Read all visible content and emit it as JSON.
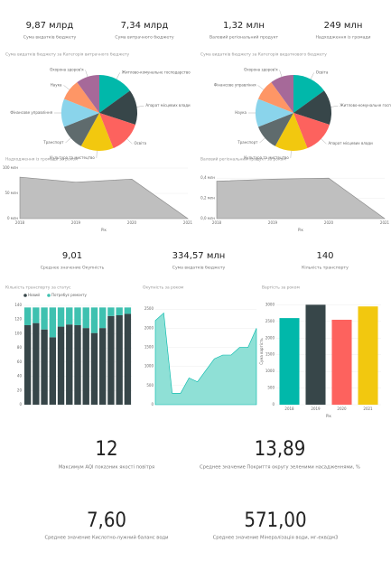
{
  "cards": [
    {
      "value": "9,87 млрд",
      "label": "Сума видатків бюджету"
    },
    {
      "value": "7,34 млрд",
      "label": "Сума витрачного бюджету"
    },
    {
      "value": "1,32 млн",
      "label": "Валовий регіональний продукт"
    },
    {
      "value": "249 млн",
      "label": "Надходження із громади"
    },
    {
      "value": "9,01",
      "label": "Среднее значение Окупність"
    },
    {
      "value": "334,57 млн",
      "label": "Сума видатків бюджету"
    },
    {
      "value": "140",
      "label": "Кількість транспорту"
    },
    {
      "value": "12",
      "label": "Максимум AQI показник якості повітря"
    },
    {
      "value": "13,89",
      "label": "Среднее значение Покриття округу зеленими насадженнями, %"
    },
    {
      "value": "7,60",
      "label": "Среднее значение Кислотно-лужний баланс води"
    },
    {
      "value": "571,00",
      "label": "Среднее значение Мінералізація води, мг-екв/дм3"
    }
  ],
  "chart_data": [
    {
      "type": "pie",
      "title": "Сума видатків бюджету за Категорія витрачного бюджету",
      "categories": [
        "Житлово-комунальне господарство",
        "Апарат місцевих влади",
        "Освіта",
        "Культура та мистецтво",
        "Транспорт",
        "Фінансове управління",
        "Наука",
        "Охорона здоров'я"
      ],
      "values": [
        15,
        15,
        14,
        14,
        11,
        12,
        9,
        10
      ],
      "colors": [
        "#01B8AA",
        "#374649",
        "#FD625E",
        "#F2C80F",
        "#5F6B6D",
        "#8AD4EB",
        "#FE9666",
        "#A66999"
      ]
    },
    {
      "type": "pie",
      "title": "Сума видатків бюджету за Категорія видаткового бюджету",
      "categories": [
        "Освіта",
        "Житлово-комунальне господарство",
        "Апарат місцевих влади",
        "Культура та мистецтво",
        "Транспорт",
        "Наука",
        "Фінансове управління",
        "Охорона здоров'я"
      ],
      "values": [
        15,
        15,
        14,
        14,
        11,
        12,
        9,
        10
      ],
      "colors": [
        "#01B8AA",
        "#374649",
        "#FD625E",
        "#F2C80F",
        "#5F6B6D",
        "#8AD4EB",
        "#FE9666",
        "#A66999"
      ]
    },
    {
      "type": "area",
      "title": "Надходження із громади за роком",
      "x_label": "Рік",
      "categories": [
        "2018",
        "2019",
        "2020",
        "2021"
      ],
      "values": [
        82,
        72,
        78,
        0
      ],
      "color": "#bfbfbf",
      "ylim": [
        0,
        100
      ],
      "yticks": [
        {
          "value": 0,
          "label": "0 млн"
        },
        {
          "value": 50,
          "label": "50 млн"
        },
        {
          "value": 100,
          "label": "100 млн"
        }
      ]
    },
    {
      "type": "area",
      "title": "Валовий регіональний продукт за роком",
      "x_label": "Рік",
      "categories": [
        "2018",
        "2019",
        "2020",
        "2021"
      ],
      "values": [
        0.37,
        0.39,
        0.4,
        0
      ],
      "color": "#bfbfbf",
      "ylim": [
        0,
        0.5
      ],
      "yticks": [
        {
          "value": 0,
          "label": "0,0 млн"
        },
        {
          "value": 0.2,
          "label": "0,2 млн"
        },
        {
          "value": 0.4,
          "label": "0,4 млн"
        }
      ]
    },
    {
      "type": "stacked",
      "title": "Кількість транспорту за статус",
      "categories": [
        null,
        null,
        null,
        null,
        null,
        null,
        null,
        null,
        null,
        null,
        null,
        null,
        null
      ],
      "series": [
        {
          "name": "Новий",
          "color": "#374649",
          "values": [
            112,
            115,
            106,
            95,
            110,
            113,
            112,
            108,
            101,
            108,
            125,
            126,
            128
          ]
        },
        {
          "name": "Потребує ремонту",
          "color": "#3fc1b0",
          "values": [
            25,
            22,
            31,
            42,
            27,
            24,
            25,
            29,
            36,
            29,
            12,
            11,
            9
          ]
        }
      ],
      "ylim": [
        0,
        140
      ],
      "yticks": [
        0,
        20,
        40,
        60,
        80,
        100,
        120,
        140
      ]
    },
    {
      "type": "area",
      "title": "Окупність за роком",
      "categories": [
        null,
        null,
        null,
        null,
        null,
        null,
        null,
        null,
        null,
        null,
        null,
        null,
        null
      ],
      "values": [
        2200,
        2400,
        300,
        300,
        700,
        600,
        900,
        1200,
        1300,
        1300,
        1500,
        1500,
        2000
      ],
      "color": "#8fe0d6",
      "ylim": [
        0,
        2600
      ],
      "yticks": [
        0,
        500,
        1000,
        1500,
        2000,
        2500
      ]
    },
    {
      "type": "bar",
      "title": "Вартість за роком",
      "x_label": "Рік",
      "y_label": "Сума вартість",
      "categories": [
        "2018",
        "2019",
        "2020",
        "2021"
      ],
      "values": [
        2600,
        3000,
        2550,
        2950
      ],
      "colors": [
        "#01B8AA",
        "#374649",
        "#FD625E",
        "#F2C80F"
      ],
      "ylim": [
        0,
        3200
      ],
      "yticks": [
        0,
        500,
        1000,
        1500,
        2000,
        2500,
        3000
      ]
    }
  ]
}
